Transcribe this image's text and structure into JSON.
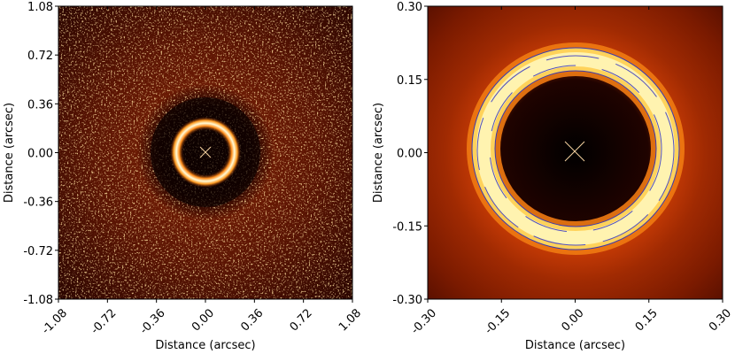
{
  "chart_data": [
    {
      "type": "image",
      "xlabel": "Distance (arcsec)",
      "ylabel": "Distance (arcsec)",
      "xlim": [
        -1.08,
        1.08
      ],
      "ylim": [
        -1.08,
        1.08
      ],
      "xticks": [
        -1.08,
        -0.72,
        -0.36,
        {
          "value": 0,
          "label": "0.00"
        },
        0.36,
        0.72,
        1.08
      ],
      "yticks": [
        -1.08,
        -0.72,
        -0.36,
        {
          "value": 0,
          "label": "0.00"
        },
        0.36,
        0.72,
        1.08
      ]
    },
    {
      "type": "image",
      "xlabel": "Distance (arcsec)",
      "ylabel": "Distance (arcsec)",
      "xlim": [
        -0.3,
        0.3
      ],
      "ylim": [
        -0.3,
        0.3
      ],
      "xticks": [
        {
          "value": -0.3,
          "label": "-0.30"
        },
        -0.15,
        {
          "value": 0,
          "label": "0.00"
        },
        0.15,
        {
          "value": 0.3,
          "label": "0.30"
        }
      ],
      "yticks": [
        {
          "value": -0.3,
          "label": "-0.30"
        },
        -0.15,
        {
          "value": 0,
          "label": "0.00"
        },
        0.15,
        {
          "value": 0.3,
          "label": "0.30"
        }
      ]
    }
  ]
}
